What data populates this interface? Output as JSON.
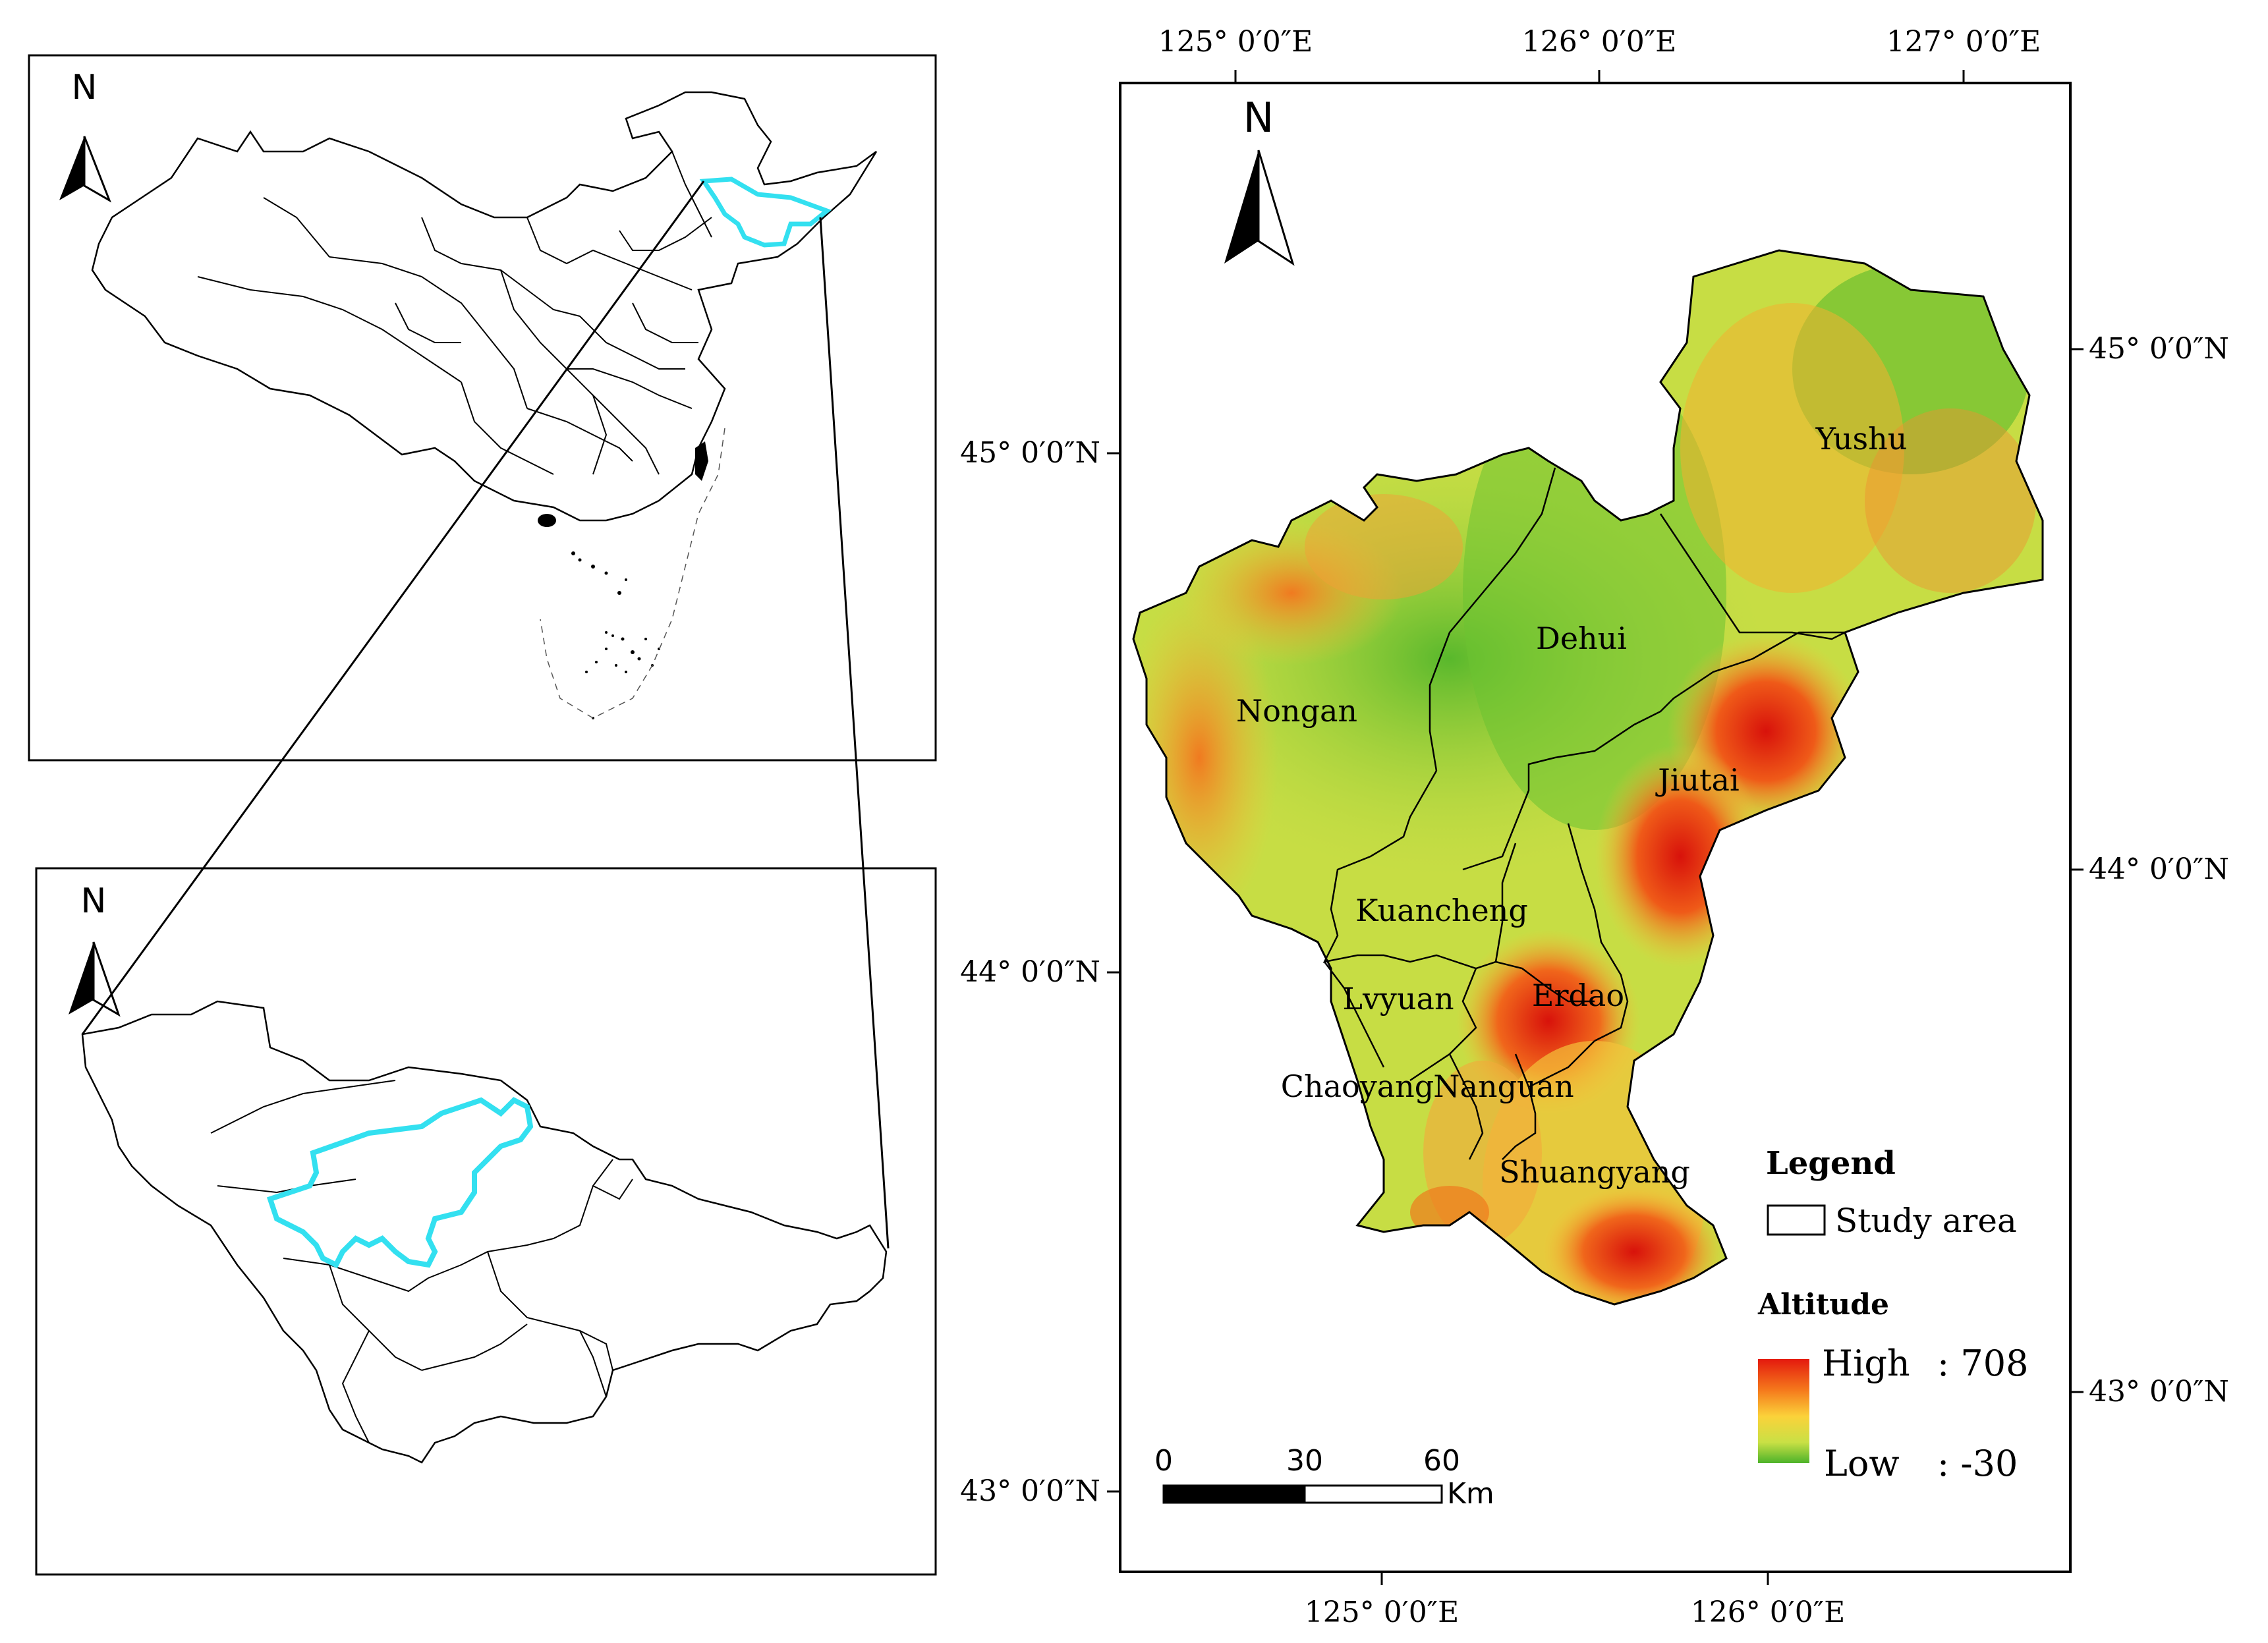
{
  "north_labels": {
    "china": "N",
    "jilin": "N",
    "main": "N"
  },
  "main_map": {
    "top_lon_labels": [
      "125° 0′0″E",
      "126° 0′0″E",
      "127° 0′0″E"
    ],
    "bottom_lon_labels": [
      "125° 0′0″E",
      "126° 0′0″E"
    ],
    "left_lat_labels": [
      "45° 0′0″N",
      "44° 0′0″N",
      "43° 0′0″N"
    ],
    "right_lat_labels": [
      "45° 0′0″N",
      "44° 0′0″N",
      "43° 0′0″N"
    ],
    "districts": [
      "Yushu",
      "Dehui",
      "Nongan",
      "Jiutai",
      "Kuancheng",
      "Lvyuan",
      "Erdao",
      "Chaoyang",
      "Nanguan",
      "Shuangyang"
    ]
  },
  "legend": {
    "title": "Legend",
    "study_area": "Study area",
    "altitude_title": "Altitude",
    "high_label": "High",
    "high_value": ": 708",
    "low_label": "Low",
    "low_value": ": -30",
    "ramp_colors": [
      "#e41a0e",
      "#f57a1c",
      "#fbd23a",
      "#c9e045",
      "#4db32a"
    ]
  },
  "scale_bar": {
    "ticks": [
      "0",
      "30",
      "60"
    ],
    "unit": "Km"
  },
  "colors": {
    "study_area_outline": "#33e0f0",
    "ink": "#000000"
  }
}
